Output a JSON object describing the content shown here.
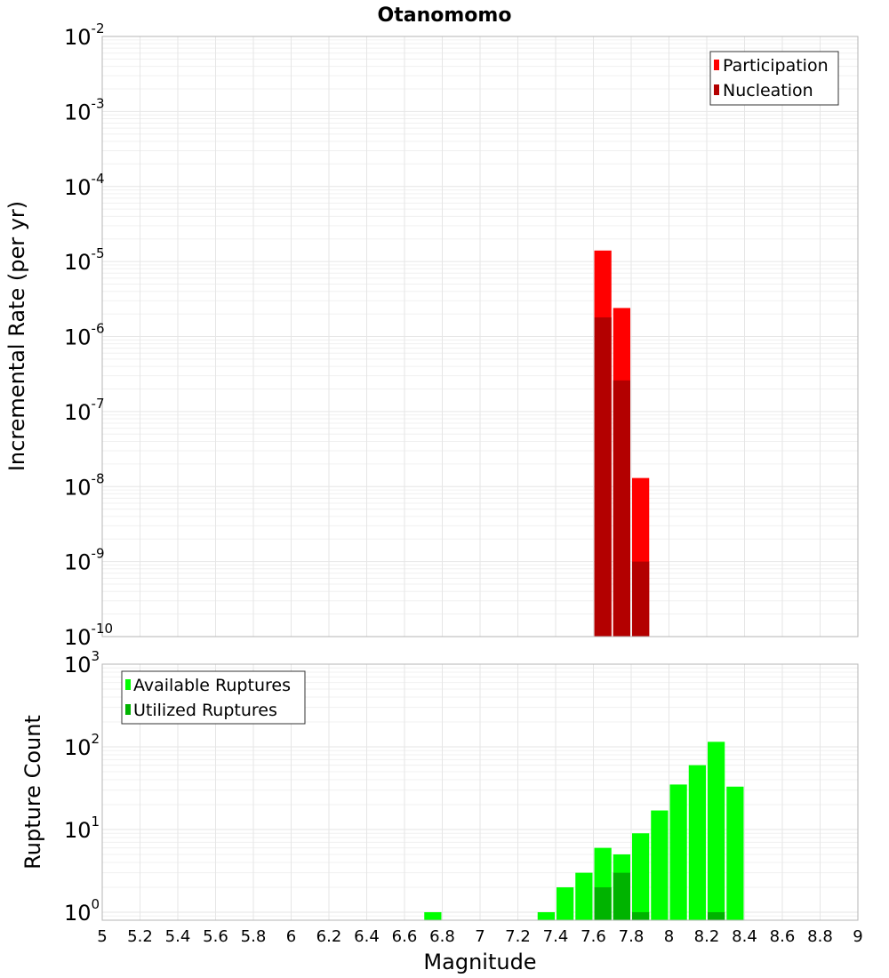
{
  "chart_data": [
    {
      "type": "bar",
      "title": "Otanomomo",
      "ylabel": "Incremental Rate (per yr)",
      "yscale": "log",
      "ylim": [
        1e-10,
        0.01
      ],
      "yticks": [
        {
          "base": "10",
          "exp": "-2"
        },
        {
          "base": "10",
          "exp": "-3"
        },
        {
          "base": "10",
          "exp": "-4"
        },
        {
          "base": "10",
          "exp": "-5"
        },
        {
          "base": "10",
          "exp": "-6"
        },
        {
          "base": "10",
          "exp": "-7"
        },
        {
          "base": "10",
          "exp": "-8"
        },
        {
          "base": "10",
          "exp": "-9"
        },
        {
          "base": "10",
          "exp": "-10"
        }
      ],
      "xlim": [
        5,
        9
      ],
      "legend": "top-right",
      "grid": true,
      "series": [
        {
          "name": "Participation",
          "color": "#ff0000",
          "x": [
            7.65,
            7.75,
            7.85
          ],
          "values": [
            1.4e-05,
            2.4e-06,
            1.3e-08
          ]
        },
        {
          "name": "Nucleation",
          "color": "#b30000",
          "x": [
            7.65,
            7.75,
            7.85
          ],
          "values": [
            1.8e-06,
            2.6e-07,
            1e-09
          ]
        }
      ]
    },
    {
      "type": "bar",
      "ylabel": "Rupture Count",
      "xlabel": "Magnitude",
      "yscale": "log",
      "ylim": [
        0.8,
        1000
      ],
      "yticks": [
        {
          "base": "10",
          "exp": "3",
          "value": 1000
        },
        {
          "base": "10",
          "exp": "2",
          "value": 100
        },
        {
          "base": "10",
          "exp": "1",
          "value": 10
        },
        {
          "base": "10",
          "exp": "0",
          "value": 1
        }
      ],
      "xlim": [
        5,
        9
      ],
      "xticks": [
        "5",
        "5.2",
        "5.4",
        "5.6",
        "5.8",
        "6",
        "6.2",
        "6.4",
        "6.6",
        "6.8",
        "7",
        "7.2",
        "7.4",
        "7.6",
        "7.8",
        "8",
        "8.2",
        "8.4",
        "8.6",
        "8.8",
        "9"
      ],
      "legend": "top-left",
      "grid": true,
      "series": [
        {
          "name": "Available Ruptures",
          "color": "#00ff00",
          "x": [
            6.75,
            7.35,
            7.45,
            7.55,
            7.65,
            7.75,
            7.85,
            7.95,
            8.05,
            8.15,
            8.25,
            8.35
          ],
          "values": [
            1,
            1,
            2,
            3,
            6,
            5,
            9,
            17,
            35,
            60,
            115,
            33
          ]
        },
        {
          "name": "Utilized Ruptures",
          "color": "#00b300",
          "x": [
            7.65,
            7.75,
            7.85,
            8.25
          ],
          "values": [
            2,
            3,
            1,
            1
          ]
        }
      ]
    }
  ]
}
